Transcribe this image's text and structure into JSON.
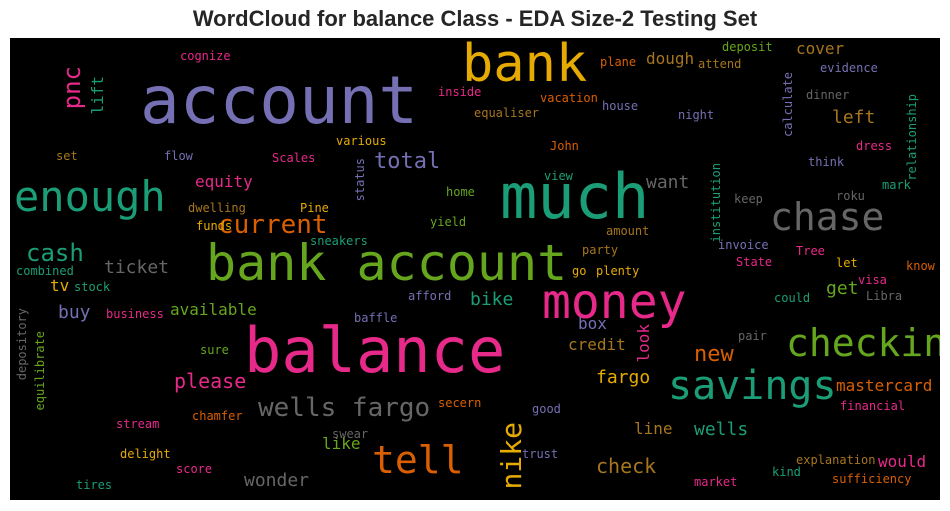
{
  "title": "WordCloud for balance Class - EDA Size-2 Testing Set",
  "colors": {
    "purple": "#7570b3",
    "pink": "#e7298a",
    "teal": "#1b9e77",
    "green": "#66a61e",
    "gold": "#e6ab02",
    "orange": "#d95f02",
    "brown": "#a6761d",
    "gray": "#666666"
  },
  "words": [
    "account",
    "bank",
    "pnc",
    "lift",
    "cognize",
    "deposit",
    "plane",
    "dough",
    "cover",
    "attend",
    "evidence",
    "inside",
    "vacation",
    "house",
    "equaliser",
    "night",
    "calculate",
    "dinner",
    "left",
    "relationship",
    "various",
    "John",
    "set",
    "flow",
    "Scales",
    "status",
    "dress",
    "think",
    "total",
    "enough",
    "much",
    "view",
    "equity",
    "want",
    "mark",
    "home",
    "keep",
    "roku",
    "chase",
    "Pine",
    "dwelling",
    "institution",
    "yield",
    "current",
    "funds",
    "amount",
    "sneakers",
    "invoice",
    "Tree",
    "cash",
    "bank account",
    "party",
    "State",
    "let",
    "know",
    "ticket",
    "combined",
    "go",
    "plenty",
    "visa",
    "stock",
    "tv",
    "money",
    "afford",
    "bike",
    "get",
    "could",
    "Libra",
    "buy",
    "business",
    "available",
    "baffle",
    "box",
    "depository",
    "look",
    "pair",
    "balance",
    "checking",
    "sure",
    "credit",
    "new",
    "equilibrate",
    "please",
    "fargo",
    "savings",
    "mastercard",
    "wells fargo",
    "secern",
    "good",
    "financial",
    "stream",
    "chamfer",
    "nike",
    "line",
    "wells",
    "like",
    "swear",
    "tell",
    "trust",
    "delight",
    "score",
    "check",
    "explanation",
    "would",
    "kind",
    "wonder",
    "tires",
    "market",
    "sufficiency"
  ]
}
